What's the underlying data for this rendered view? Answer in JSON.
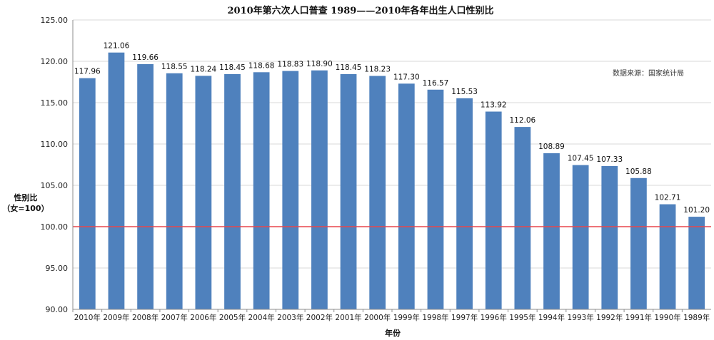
{
  "chart_data": {
    "type": "bar",
    "title": "2010年第六次人口普查 1989——2010年各年出生人口性别比",
    "xlabel": "年份",
    "ylabel": [
      "性别比",
      "（女=100）"
    ],
    "source": "数据来源：国家统计局",
    "categories": [
      "2010年",
      "2009年",
      "2008年",
      "2007年",
      "2006年",
      "2005年",
      "2004年",
      "2003年",
      "2002年",
      "2001年",
      "2000年",
      "1999年",
      "1998年",
      "1997年",
      "1996年",
      "1995年",
      "1994年",
      "1993年",
      "1992年",
      "1991年",
      "1990年",
      "1989年"
    ],
    "values": [
      117.96,
      121.06,
      119.66,
      118.55,
      118.24,
      118.45,
      118.68,
      118.83,
      118.9,
      118.45,
      118.23,
      117.3,
      116.57,
      115.53,
      113.92,
      112.06,
      108.89,
      107.45,
      107.33,
      105.88,
      102.71,
      101.2
    ],
    "value_labels": [
      "117.96",
      "121.06",
      "119.66",
      "118.55",
      "118.24",
      "118.45",
      "118.68",
      "118.83",
      "118.90",
      "118.45",
      "118.23",
      "117.30",
      "116.57",
      "115.53",
      "113.92",
      "112.06",
      "108.89",
      "107.45",
      "107.33",
      "105.88",
      "102.71",
      "101.20"
    ],
    "ylim": [
      90,
      125
    ],
    "yticks": [
      "90.00",
      "95.00",
      "100.00",
      "105.00",
      "110.00",
      "115.00",
      "120.00",
      "125.00"
    ],
    "reference_line": 100,
    "grid": true,
    "legend": "none",
    "colors": {
      "bar": "#4f81bd",
      "reference": "#e8474c",
      "grid": "#d9d9d9",
      "axis": "#8c8c8c"
    }
  }
}
